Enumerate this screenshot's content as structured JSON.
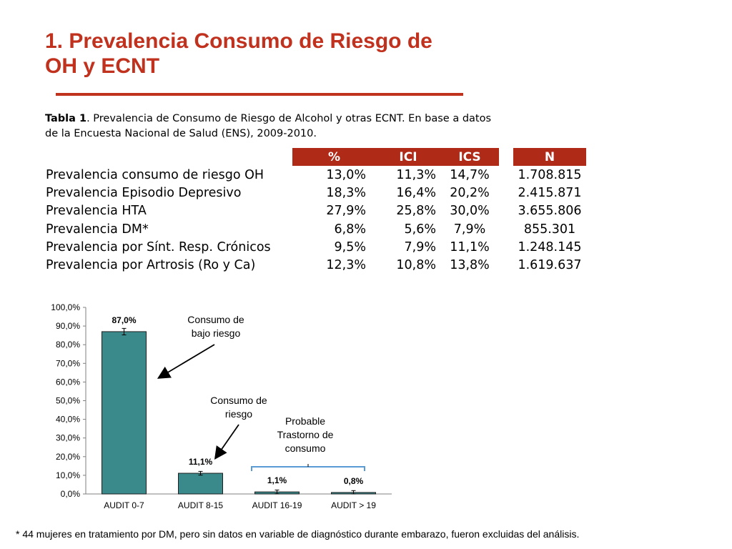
{
  "title_line1": "1. Prevalencia Consumo de Riesgo de",
  "title_line2": "OH y ECNT",
  "caption": {
    "bold": "Tabla 1",
    "text": ". Prevalencia de  Consumo de Riesgo de Alcohol y otras ECNT. En base a datos de la Encuesta Nacional de Salud (ENS), 2009-2010."
  },
  "table": {
    "headers": [
      "%",
      "ICI",
      "ICS",
      "N"
    ],
    "rows": [
      {
        "label": "Prevalencia consumo de riesgo OH",
        "pct": "13,0%",
        "ici": "11,3%",
        "ics": "14,7%",
        "n": "1.708.815"
      },
      {
        "label": "Prevalencia Episodio Depresivo",
        "pct": "18,3%",
        "ici": "16,4%",
        "ics": "20,2%",
        "n": "2.415.871"
      },
      {
        "label": "Prevalencia HTA",
        "pct": "27,9%",
        "ici": "25,8%",
        "ics": "30,0%",
        "n": "3.655.806"
      },
      {
        "label": "Prevalencia DM*",
        "pct": "6,8%",
        "ici": "5,6%",
        "ics": "7,9%",
        "n": "855.301"
      },
      {
        "label": "Prevalencia por Sínt. Resp. Crónicos",
        "pct": "9,5%",
        "ici": "7,9%",
        "ics": "11,1%",
        "n": "1.248.145"
      },
      {
        "label": "Prevalencia por Artrosis (Ro y Ca)",
        "pct": "12,3%",
        "ici": "10,8%",
        "ics": "13,8%",
        "n": "1.619.637"
      }
    ]
  },
  "chart_data": {
    "type": "bar",
    "categories": [
      "AUDIT 0-7",
      "AUDIT 8-15",
      "AUDIT 16-19",
      "AUDIT > 19"
    ],
    "values": [
      87.0,
      11.1,
      1.1,
      0.8
    ],
    "data_labels": [
      "87,0%",
      "11,1%",
      "1,1%",
      "0,8%"
    ],
    "yticks": [
      "0,0%",
      "10,0%",
      "20,0%",
      "30,0%",
      "40,0%",
      "50,0%",
      "60,0%",
      "70,0%",
      "80,0%",
      "90,0%",
      "100,0%"
    ],
    "ylim": [
      0,
      100
    ],
    "error_bars": true,
    "bar_color": "#3a8a8c",
    "annotations": [
      {
        "text_lines": [
          "Consumo de",
          "bajo riesgo"
        ],
        "target": "AUDIT 0-7"
      },
      {
        "text_lines": [
          "Consumo de",
          "riesgo"
        ],
        "target": "AUDIT 8-15"
      },
      {
        "text_lines": [
          "Probable",
          "Trastorno de",
          "consumo"
        ],
        "target": "AUDIT 16-19, AUDIT > 19"
      }
    ]
  },
  "footnote": "* 44 mujeres en tratamiento por DM, pero sin datos en variable de diagnóstico durante embarazo, fueron excluidas del análisis.",
  "colors": {
    "accent": "#c0311e",
    "header_fill": "#b02a18",
    "bar": "#3a8a8c"
  }
}
